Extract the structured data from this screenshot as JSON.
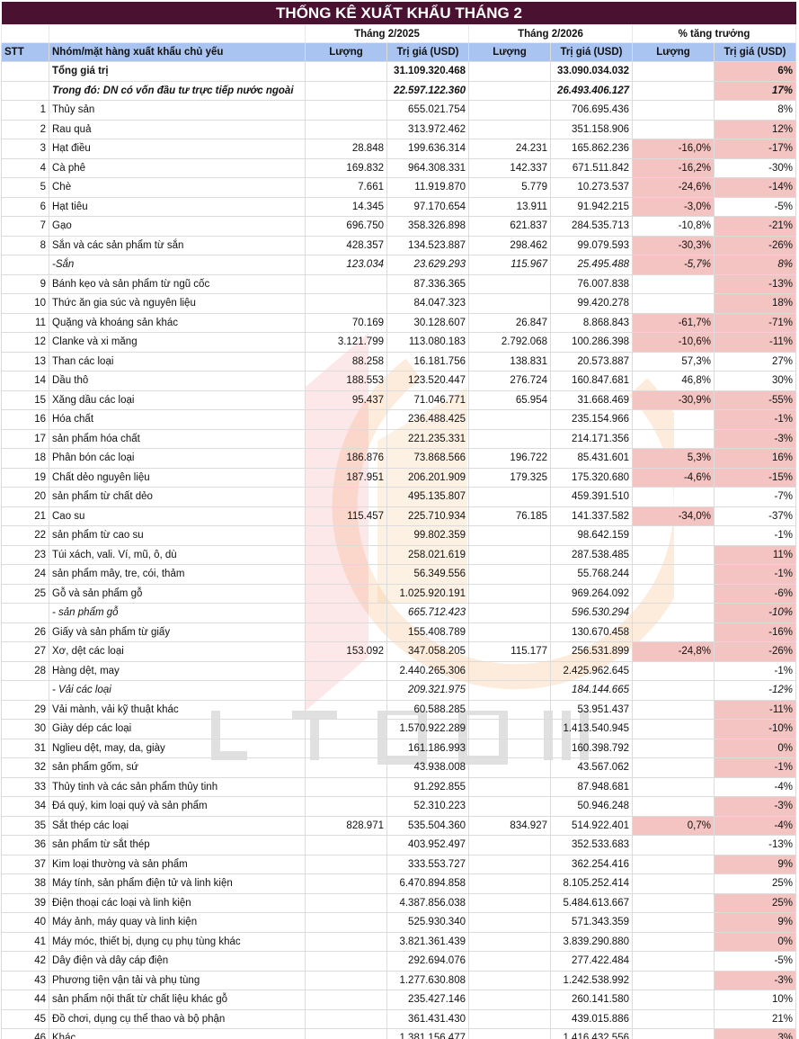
{
  "title": "THỐNG KÊ XUẤT KHẨU THÁNG 2",
  "header": {
    "period1": "Tháng 2/2025",
    "period2": "Tháng 2/2026",
    "growth": "% tăng trưởng",
    "stt": "STT",
    "item": "Nhóm/mặt hàng xuất khẩu chủ yếu",
    "qty": "Lượng",
    "value": "Trị giá (USD)"
  },
  "watermark": "LTGNM",
  "highlight_color": "#f3c4c1",
  "rows": [
    {
      "stt": "",
      "name": "Tổng giá trị",
      "q25": "",
      "v25": "31.109.320.468",
      "q26": "",
      "v26": "33.090.034.032",
      "pq": "",
      "pv": "6%",
      "hq": false,
      "hv": true,
      "style": "bold"
    },
    {
      "stt": "",
      "name": "Trong đó: DN có vốn đầu tư trực tiếp nước ngoài",
      "q25": "",
      "v25": "22.597.122.360",
      "q26": "",
      "v26": "26.493.406.127",
      "pq": "",
      "pv": "17%",
      "hq": false,
      "hv": true,
      "style": "bi"
    },
    {
      "stt": "1",
      "name": "Thủy sản",
      "q25": "",
      "v25": "655.021.754",
      "q26": "",
      "v26": "706.695.436",
      "pq": "",
      "pv": "8%",
      "hq": false,
      "hv": false
    },
    {
      "stt": "2",
      "name": "Rau quả",
      "q25": "",
      "v25": "313.972.462",
      "q26": "",
      "v26": "351.158.906",
      "pq": "",
      "pv": "12%",
      "hq": false,
      "hv": true
    },
    {
      "stt": "3",
      "name": "Hạt điều",
      "q25": "28.848",
      "v25": "199.636.314",
      "q26": "24.231",
      "v26": "165.862.236",
      "pq": "-16,0%",
      "pv": "-17%",
      "hq": true,
      "hv": true
    },
    {
      "stt": "4",
      "name": "Cà phê",
      "q25": "169.832",
      "v25": "964.308.331",
      "q26": "142.337",
      "v26": "671.511.842",
      "pq": "-16,2%",
      "pv": "-30%",
      "hq": true,
      "hv": false
    },
    {
      "stt": "5",
      "name": "Chè",
      "q25": "7.661",
      "v25": "11.919.870",
      "q26": "5.779",
      "v26": "10.273.537",
      "pq": "-24,6%",
      "pv": "-14%",
      "hq": true,
      "hv": true
    },
    {
      "stt": "6",
      "name": "Hạt tiêu",
      "q25": "14.345",
      "v25": "97.170.654",
      "q26": "13.911",
      "v26": "91.942.215",
      "pq": "-3,0%",
      "pv": "-5%",
      "hq": true,
      "hv": false
    },
    {
      "stt": "7",
      "name": "Gạo",
      "q25": "696.750",
      "v25": "358.326.898",
      "q26": "621.837",
      "v26": "284.535.713",
      "pq": "-10,8%",
      "pv": "-21%",
      "hq": false,
      "hv": true
    },
    {
      "stt": "8",
      "name": "Sắn và các sản phẩm từ sắn",
      "q25": "428.357",
      "v25": "134.523.887",
      "q26": "298.462",
      "v26": "99.079.593",
      "pq": "-30,3%",
      "pv": "-26%",
      "hq": true,
      "hv": true
    },
    {
      "stt": "",
      "name": "-Sắn",
      "q25": "123.034",
      "v25": "23.629.293",
      "q26": "115.967",
      "v26": "25.495.488",
      "pq": "-5,7%",
      "pv": "8%",
      "hq": true,
      "hv": true,
      "style": "it"
    },
    {
      "stt": "9",
      "name": "Bánh kẹo và sản phẩm từ ngũ cốc",
      "q25": "",
      "v25": "87.336.365",
      "q26": "",
      "v26": "76.007.838",
      "pq": "",
      "pv": "-13%",
      "hq": false,
      "hv": true
    },
    {
      "stt": "10",
      "name": "Thức ăn gia súc và nguyên liệu",
      "q25": "",
      "v25": "84.047.323",
      "q26": "",
      "v26": "99.420.278",
      "pq": "",
      "pv": "18%",
      "hq": false,
      "hv": true
    },
    {
      "stt": "11",
      "name": "Quặng và khoáng sản khác",
      "q25": "70.169",
      "v25": "30.128.607",
      "q26": "26.847",
      "v26": "8.868.843",
      "pq": "-61,7%",
      "pv": "-71%",
      "hq": true,
      "hv": true
    },
    {
      "stt": "12",
      "name": "Clanke và xi măng",
      "q25": "3.121.799",
      "v25": "113.080.183",
      "q26": "2.792.068",
      "v26": "100.286.398",
      "pq": "-10,6%",
      "pv": "-11%",
      "hq": true,
      "hv": true
    },
    {
      "stt": "13",
      "name": "Than các loại",
      "q25": "88.258",
      "v25": "16.181.756",
      "q26": "138.831",
      "v26": "20.573.887",
      "pq": "57,3%",
      "pv": "27%",
      "hq": false,
      "hv": false
    },
    {
      "stt": "14",
      "name": "Dầu thô",
      "q25": "188.553",
      "v25": "123.520.447",
      "q26": "276.724",
      "v26": "160.847.681",
      "pq": "46,8%",
      "pv": "30%",
      "hq": false,
      "hv": false
    },
    {
      "stt": "15",
      "name": "Xăng dầu các loại",
      "q25": "95.437",
      "v25": "71.046.771",
      "q26": "65.954",
      "v26": "31.668.469",
      "pq": "-30,9%",
      "pv": "-55%",
      "hq": true,
      "hv": true
    },
    {
      "stt": "16",
      "name": "Hóa chất",
      "q25": "",
      "v25": "236.488.425",
      "q26": "",
      "v26": "235.154.966",
      "pq": "",
      "pv": "-1%",
      "hq": false,
      "hv": true
    },
    {
      "stt": "17",
      "name": "sản phẩm hóa chất",
      "q25": "",
      "v25": "221.235.331",
      "q26": "",
      "v26": "214.171.356",
      "pq": "",
      "pv": "-3%",
      "hq": false,
      "hv": true
    },
    {
      "stt": "18",
      "name": "Phân bón các loại",
      "q25": "186.876",
      "v25": "73.868.566",
      "q26": "196.722",
      "v26": "85.431.601",
      "pq": "5,3%",
      "pv": "16%",
      "hq": true,
      "hv": true
    },
    {
      "stt": "19",
      "name": "Chất dẻo nguyên liệu",
      "q25": "187.951",
      "v25": "206.201.909",
      "q26": "179.325",
      "v26": "175.320.680",
      "pq": "-4,6%",
      "pv": "-15%",
      "hq": true,
      "hv": true
    },
    {
      "stt": "20",
      "name": "sản phẩm từ chất dẻo",
      "q25": "",
      "v25": "495.135.807",
      "q26": "",
      "v26": "459.391.510",
      "pq": "",
      "pv": "-7%",
      "hq": false,
      "hv": false
    },
    {
      "stt": "21",
      "name": "Cao su",
      "q25": "115.457",
      "v25": "225.710.934",
      "q26": "76.185",
      "v26": "141.337.582",
      "pq": "-34,0%",
      "pv": "-37%",
      "hq": true,
      "hv": false
    },
    {
      "stt": "22",
      "name": "sản phẩm từ cao su",
      "q25": "",
      "v25": "99.802.359",
      "q26": "",
      "v26": "98.642.159",
      "pq": "",
      "pv": "-1%",
      "hq": false,
      "hv": false
    },
    {
      "stt": "23",
      "name": "Túi xách, vali. Ví, mũ, ô, dù",
      "q25": "",
      "v25": "258.021.619",
      "q26": "",
      "v26": "287.538.485",
      "pq": "",
      "pv": "11%",
      "hq": false,
      "hv": true
    },
    {
      "stt": "24",
      "name": "sản phẩm mây, tre, cói, thảm",
      "q25": "",
      "v25": "56.349.556",
      "q26": "",
      "v26": "55.768.244",
      "pq": "",
      "pv": "-1%",
      "hq": false,
      "hv": true
    },
    {
      "stt": "25",
      "name": "Gỗ và sản phẩm gỗ",
      "q25": "",
      "v25": "1.025.920.191",
      "q26": "",
      "v26": "969.264.092",
      "pq": "",
      "pv": "-6%",
      "hq": false,
      "hv": true
    },
    {
      "stt": "",
      "name": "- sản phẩm gỗ",
      "q25": "",
      "v25": "665.712.423",
      "q26": "",
      "v26": "596.530.294",
      "pq": "",
      "pv": "-10%",
      "hq": false,
      "hv": true,
      "style": "it"
    },
    {
      "stt": "26",
      "name": "Giấy và sản phẩm từ giấy",
      "q25": "",
      "v25": "155.408.789",
      "q26": "",
      "v26": "130.670.458",
      "pq": "",
      "pv": "-16%",
      "hq": false,
      "hv": true
    },
    {
      "stt": "27",
      "name": "Xơ, dệt các loại",
      "q25": "153.092",
      "v25": "347.058.205",
      "q26": "115.177",
      "v26": "256.531.899",
      "pq": "-24,8%",
      "pv": "-26%",
      "hq": true,
      "hv": true
    },
    {
      "stt": "28",
      "name": "Hàng dệt, may",
      "q25": "",
      "v25": "2.440.265.306",
      "q26": "",
      "v26": "2.425.962.645",
      "pq": "",
      "pv": "-1%",
      "hq": false,
      "hv": false
    },
    {
      "stt": "",
      "name": "- Vải các loại",
      "q25": "",
      "v25": "209.321.975",
      "q26": "",
      "v26": "184.144.665",
      "pq": "",
      "pv": "-12%",
      "hq": false,
      "hv": false,
      "style": "it"
    },
    {
      "stt": "29",
      "name": "Vải mành, vải kỹ thuật khác",
      "q25": "",
      "v25": "60.588.285",
      "q26": "",
      "v26": "53.951.437",
      "pq": "",
      "pv": "-11%",
      "hq": false,
      "hv": true
    },
    {
      "stt": "30",
      "name": "Giày dép các loại",
      "q25": "",
      "v25": "1.570.922.289",
      "q26": "",
      "v26": "1.413.540.945",
      "pq": "",
      "pv": "-10%",
      "hq": false,
      "hv": true
    },
    {
      "stt": "31",
      "name": "Nglieu dệt, may, da, giày",
      "q25": "",
      "v25": "161.186.993",
      "q26": "",
      "v26": "160.398.792",
      "pq": "",
      "pv": "0%",
      "hq": false,
      "hv": true
    },
    {
      "stt": "32",
      "name": "sản phẩm gốm, sứ",
      "q25": "",
      "v25": "43.938.008",
      "q26": "",
      "v26": "43.567.062",
      "pq": "",
      "pv": "-1%",
      "hq": false,
      "hv": true
    },
    {
      "stt": "33",
      "name": "Thủy tinh và các sản phẩm thủy tinh",
      "q25": "",
      "v25": "91.292.855",
      "q26": "",
      "v26": "87.948.681",
      "pq": "",
      "pv": "-4%",
      "hq": false,
      "hv": false
    },
    {
      "stt": "34",
      "name": "Đá quý, kim loại quý và sản phẩm",
      "q25": "",
      "v25": "52.310.223",
      "q26": "",
      "v26": "50.946.248",
      "pq": "",
      "pv": "-3%",
      "hq": false,
      "hv": true
    },
    {
      "stt": "35",
      "name": "Sắt thép các loại",
      "q25": "828.971",
      "v25": "535.504.360",
      "q26": "834.927",
      "v26": "514.922.401",
      "pq": "0,7%",
      "pv": "-4%",
      "hq": true,
      "hv": true
    },
    {
      "stt": "36",
      "name": "sản phẩm từ sắt thép",
      "q25": "",
      "v25": "403.952.497",
      "q26": "",
      "v26": "352.533.683",
      "pq": "",
      "pv": "-13%",
      "hq": false,
      "hv": false
    },
    {
      "stt": "37",
      "name": "Kim loại thường và sản phẩm",
      "q25": "",
      "v25": "333.553.727",
      "q26": "",
      "v26": "362.254.416",
      "pq": "",
      "pv": "9%",
      "hq": false,
      "hv": true
    },
    {
      "stt": "38",
      "name": "Máy tính, sản phẩm điện tử và linh kiện",
      "q25": "",
      "v25": "6.470.894.858",
      "q26": "",
      "v26": "8.105.252.414",
      "pq": "",
      "pv": "25%",
      "hq": false,
      "hv": false
    },
    {
      "stt": "39",
      "name": "Điện thoại các loại và linh kiện",
      "q25": "",
      "v25": "4.387.856.038",
      "q26": "",
      "v26": "5.484.613.667",
      "pq": "",
      "pv": "25%",
      "hq": false,
      "hv": true
    },
    {
      "stt": "40",
      "name": "Máy ảnh, máy quay và linh kiện",
      "q25": "",
      "v25": "525.930.340",
      "q26": "",
      "v26": "571.343.359",
      "pq": "",
      "pv": "9%",
      "hq": false,
      "hv": true
    },
    {
      "stt": "41",
      "name": "Máy móc, thiết bị, dụng cụ phụ tùng khác",
      "q25": "",
      "v25": "3.821.361.439",
      "q26": "",
      "v26": "3.839.290.880",
      "pq": "",
      "pv": "0%",
      "hq": false,
      "hv": true
    },
    {
      "stt": "42",
      "name": "Dây điện và dây cáp điện",
      "q25": "",
      "v25": "292.694.076",
      "q26": "",
      "v26": "277.422.484",
      "pq": "",
      "pv": "-5%",
      "hq": false,
      "hv": false
    },
    {
      "stt": "43",
      "name": "Phương tiện vận tải và phụ tùng",
      "q25": "",
      "v25": "1.277.630.808",
      "q26": "",
      "v26": "1.242.538.992",
      "pq": "",
      "pv": "-3%",
      "hq": false,
      "hv": true
    },
    {
      "stt": "44",
      "name": "sản phẩm nội thất từ chất liệu khác gỗ",
      "q25": "",
      "v25": "235.427.146",
      "q26": "",
      "v26": "260.141.580",
      "pq": "",
      "pv": "10%",
      "hq": false,
      "hv": false
    },
    {
      "stt": "45",
      "name": "Đồ chơi, dụng cụ thể thao và bộ phận",
      "q25": "",
      "v25": "361.431.430",
      "q26": "",
      "v26": "439.015.886",
      "pq": "",
      "pv": "21%",
      "hq": false,
      "hv": false
    },
    {
      "stt": "46",
      "name": "Khác",
      "q25": "",
      "v25": "1.381.156.477",
      "q26": "",
      "v26": "1.416.432.556",
      "pq": "",
      "pv": "3%",
      "hq": false,
      "hv": true
    }
  ]
}
